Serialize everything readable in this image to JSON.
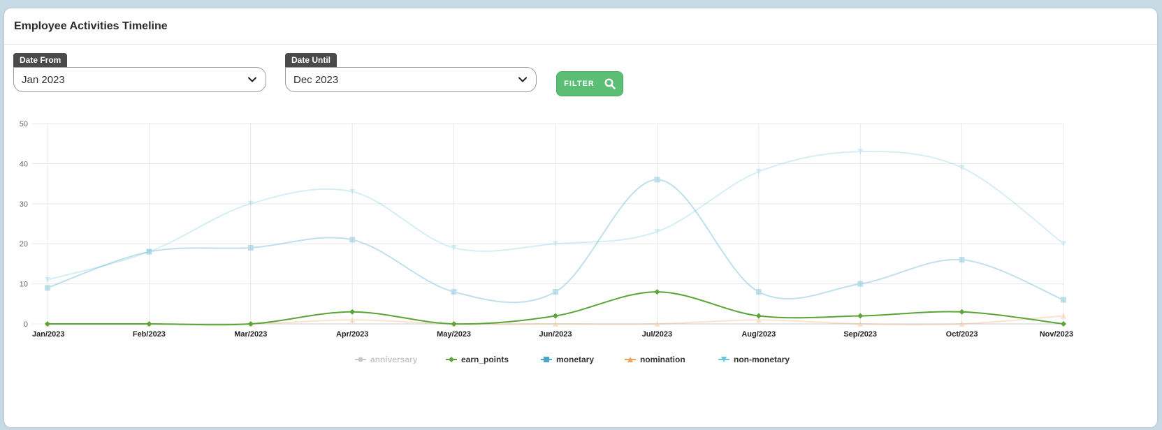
{
  "card": {
    "title": "Employee Activities Timeline"
  },
  "filters": {
    "date_from": {
      "label": "Date From",
      "value": "Jan 2023"
    },
    "date_until": {
      "label": "Date Until",
      "value": "Dec 2023"
    },
    "filter_button": "FILTER"
  },
  "icons": {
    "dropdown": "chevron-down-icon",
    "filter": "search-icon"
  },
  "chart_data": {
    "type": "line",
    "categories": [
      "Jan/2023",
      "Feb/2023",
      "Mar/2023",
      "Apr/2023",
      "May/2023",
      "Jun/2023",
      "Jul/2023",
      "Aug/2023",
      "Sep/2023",
      "Oct/2023",
      "Nov/2023"
    ],
    "ylim": [
      0,
      50
    ],
    "yticks": [
      0,
      10,
      20,
      30,
      40,
      50
    ],
    "grid": true,
    "legend_position": "bottom",
    "series": [
      {
        "name": "anniversary",
        "color": "#9a9a9a",
        "marker": "circle",
        "muted": true,
        "values": [
          0,
          0,
          0,
          0,
          0,
          0,
          0,
          0,
          0,
          0,
          0
        ]
      },
      {
        "name": "earn_points",
        "color": "#5aa537",
        "marker": "diamond",
        "muted": false,
        "values": [
          0,
          0,
          0,
          3,
          0,
          2,
          8,
          2,
          2,
          3,
          0
        ]
      },
      {
        "name": "monetary",
        "color": "#4ba8c8",
        "marker": "square",
        "muted": false,
        "values": [
          9,
          18,
          19,
          21,
          8,
          8,
          36,
          8,
          10,
          16,
          6
        ]
      },
      {
        "name": "nomination",
        "color": "#f0a060",
        "marker": "triangle",
        "muted": false,
        "values": [
          0,
          0,
          0,
          1,
          0,
          0,
          0,
          1,
          0,
          0,
          2
        ]
      },
      {
        "name": "non-monetary",
        "color": "#6cc6df",
        "marker": "triangle-down",
        "muted": false,
        "values": [
          11,
          18,
          30,
          33,
          19,
          20,
          23,
          38,
          43,
          39,
          20
        ]
      }
    ]
  }
}
